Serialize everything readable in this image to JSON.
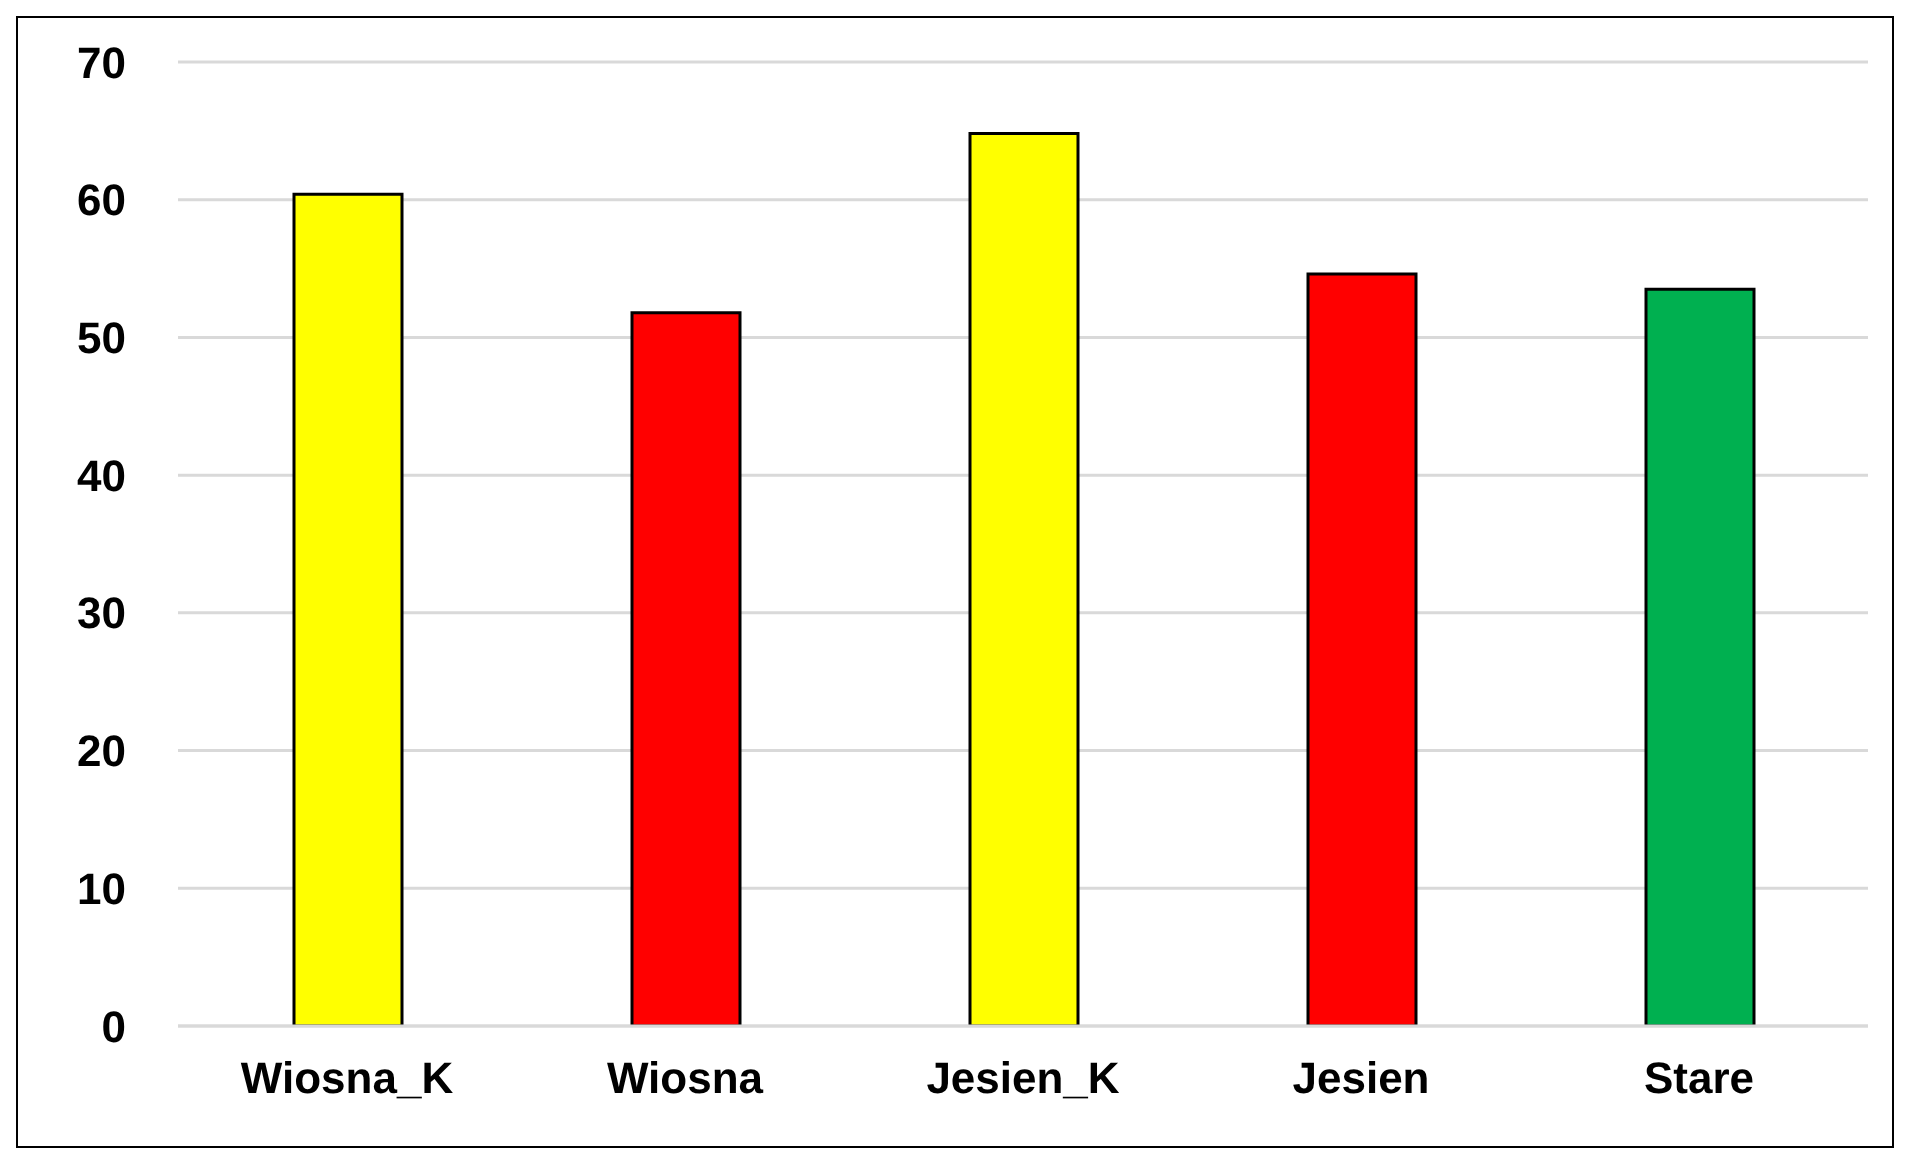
{
  "chart_data": {
    "type": "bar",
    "categories": [
      "Wiosna_K",
      "Wiosna",
      "Jesien_K",
      "Jesien",
      "Stare"
    ],
    "values": [
      60.4,
      51.8,
      64.8,
      54.6,
      53.5
    ],
    "colors": [
      "#ffff00",
      "#ff0000",
      "#ffff00",
      "#ff0000",
      "#00b050"
    ],
    "ylim": [
      0,
      70
    ],
    "yticks": [
      0,
      10,
      20,
      30,
      40,
      50,
      60,
      70
    ],
    "grid": "y"
  }
}
